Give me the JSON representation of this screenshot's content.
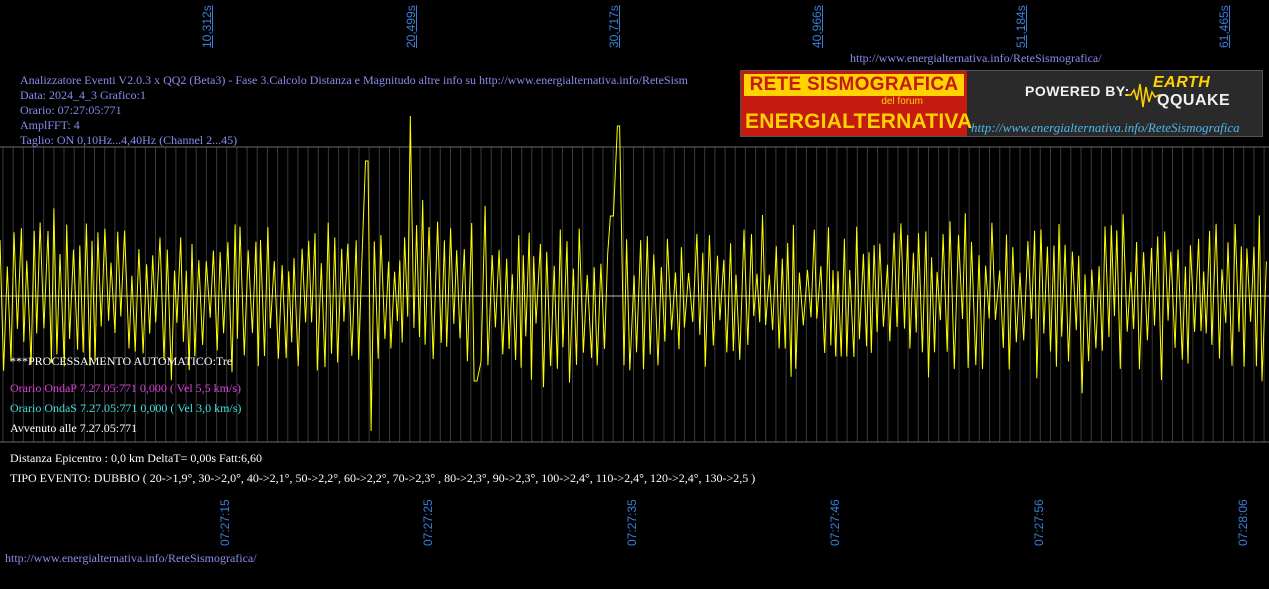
{
  "header": {
    "title": "Analizzatore Eventi V2.0.3 x QQ2 (Beta3) - Fase 3.Calcolo Distanza e Magnitudo altre info su http://www.energialternativa.info/ReteSism",
    "data": "Data: 2024_4_3 Grafico:1",
    "orario": "Orario: 07:27:05:771",
    "ampl": "AmplFFT: 4",
    "taglio": "Taglio: ON 0,10Hz...4,40Hz       (Channel 2...45)"
  },
  "url_top": "http://www.energialternativa.info/ReteSismografica/",
  "url_bottom": "http://www.energialternativa.info/ReteSismografica/",
  "top_ticks": [
    "10,312s",
    "20,499s",
    "30,717s",
    "40,966s",
    "51,184s",
    "61,465s"
  ],
  "bottom_ticks": [
    "07:27:15",
    "07:27:25",
    "07:27:35",
    "07:27:46",
    "07:27:56",
    "07:28:06"
  ],
  "logo": {
    "line1": "RETE SISMOGRAFICA",
    "line2": "del forum",
    "line3": "ENERGIALTERNATIVA",
    "powered": "POWERED BY:",
    "eq_top": "EARTH",
    "eq_bottom": "QQUAKE",
    "url": "http://www.energialternativa.info/ReteSismografica"
  },
  "analysis": {
    "processing": "***PROCESSAMENTO AUTOMATICO:Tre",
    "onda_p": "Orario OndaP 7.27.05:771  0,000 ( Vel 5,5 km/s)",
    "onda_s": "Orario OndaS 7.27.05:771  0,000 ( Vel 3,0 km/s)",
    "avvenuto": "Avvenuto alle 7.27.05:771",
    "distanza": "Distanza Epicentro : 0,0 km DeltaT= 0,00s  Fatt:6,60",
    "tipo_evento": "TIPO EVENTO: DUBBIO ( 20->1,9°, 30->2,0°, 40->2,1°, 50->2,2°, 60->2,2°, 70->2,3° , 80->2,3°, 90->2,3°, 100->2,4°, 110->2,4°, 120->2,4°, 130->2,5 )"
  },
  "colors": {
    "background": "#000000",
    "trace": "#ffff00",
    "header_text": "#8a8cf0",
    "onda_p": "#e040e0",
    "onda_s": "#40e0e0",
    "tick_labels": "#3a7fd8",
    "grid": "#555555"
  }
}
